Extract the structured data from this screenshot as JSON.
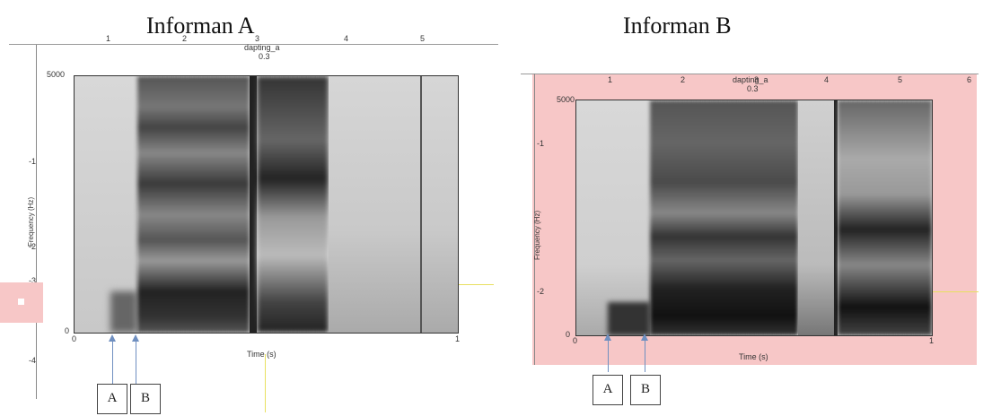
{
  "titles": {
    "a": "Informan A",
    "b": "Informan B"
  },
  "panel_a": {
    "file_label": "dapting_a",
    "file_sub": "0.3",
    "top_ticks": [
      "1",
      "2",
      "3",
      "4",
      "5"
    ],
    "y_max": "5000",
    "y_min": "0",
    "y_axis_label": "Frequency (Hz)",
    "x_axis_label": "Time (s)",
    "x_start": "0",
    "x_end": "1",
    "left_ticks": [
      "-1",
      "-2",
      "-3",
      "-4"
    ],
    "markers": [
      "A",
      "B"
    ]
  },
  "panel_b": {
    "file_label": "dapting_a",
    "file_sub": "0.3",
    "top_ticks": [
      "1",
      "2",
      "3",
      "4",
      "5",
      "6"
    ],
    "y_max": "5000",
    "y_min": "0",
    "y_axis_label": "Frequency (Hz)",
    "x_axis_label": "Time (s)",
    "x_start": "0",
    "x_end": "1",
    "left_ticks": [
      "-1",
      "-2"
    ],
    "markers": [
      "A",
      "B"
    ]
  },
  "colors": {
    "highlight": "#f7c7c7",
    "arrow": "#6f8fc0",
    "guide": "#e8e060"
  }
}
